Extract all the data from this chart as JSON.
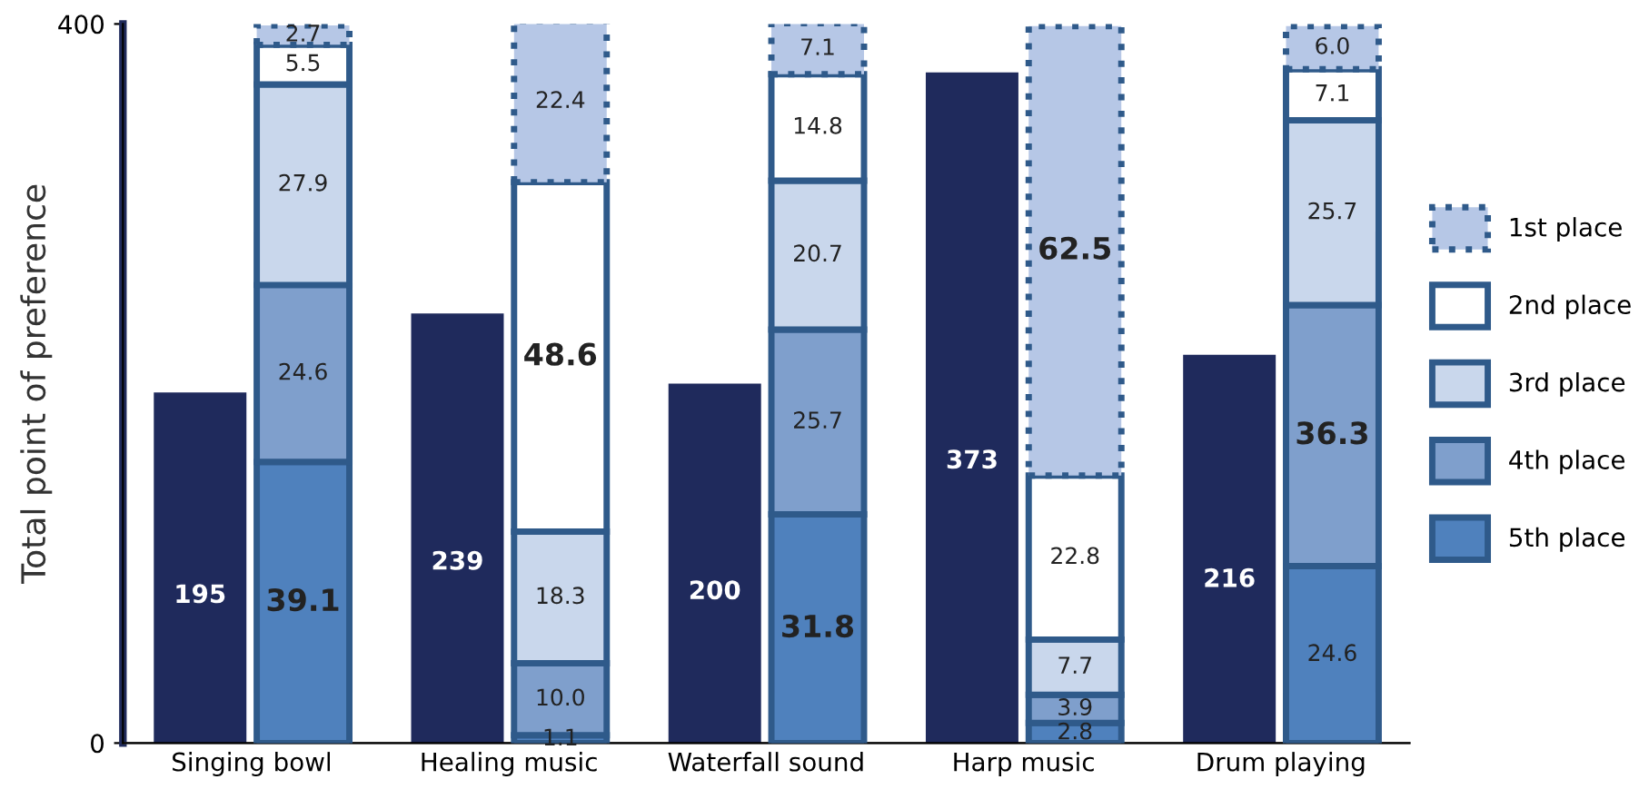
{
  "chart_data": {
    "type": "bar",
    "ylabel": "Total point of preference",
    "categories": [
      "Singing bowl",
      "Healing music",
      "Waterfall sound",
      "Harp music",
      "Drum playing"
    ],
    "stacked": true,
    "legend": "right",
    "grid": false,
    "ylim": [
      0,
      400
    ],
    "yticks": [
      0,
      400
    ],
    "y2lim": [
      0,
      100
    ],
    "series": [
      {
        "color": "#1f2a5c",
        "values": [
          195,
          239,
          200,
          373,
          216
        ],
        "value_labels": [
          "195",
          "239",
          "200",
          "373",
          "216"
        ]
      },
      {
        "name": "5th place",
        "axis": "y2",
        "color": "#4f81bd",
        "values": [
          39.1,
          1.1,
          31.8,
          2.8,
          24.6
        ],
        "value_labels": [
          "39.1",
          "1.1",
          "31.8",
          "2.8",
          "24.6"
        ]
      },
      {
        "name": "4th place",
        "axis": "y2",
        "color": "#7f9fcc",
        "values": [
          24.6,
          10.0,
          25.7,
          3.9,
          36.3
        ],
        "value_labels": [
          "24.6",
          "10.0",
          "25.7",
          "3.9",
          "36.3"
        ]
      },
      {
        "name": "3rd place",
        "axis": "y2",
        "color": "#c9d7ec",
        "values": [
          27.9,
          18.3,
          20.7,
          7.7,
          25.7
        ],
        "value_labels": [
          "27.9",
          "18.3",
          "20.7",
          "7.7",
          "25.7"
        ]
      },
      {
        "name": "2nd place",
        "axis": "y2",
        "color": "#ffffff",
        "values": [
          5.5,
          48.6,
          14.8,
          22.8,
          7.1
        ],
        "value_labels": [
          "5.5",
          "48.6",
          "14.8",
          "22.8",
          "7.1"
        ]
      },
      {
        "name": "1st place",
        "axis": "y2",
        "color": "#b6c7e6",
        "line_style": "dotted",
        "values": [
          2.7,
          22.4,
          7.1,
          62.5,
          6.0
        ],
        "value_labels": [
          "2.7",
          "22.4",
          "7.1",
          "62.5",
          "6.0"
        ]
      }
    ]
  }
}
